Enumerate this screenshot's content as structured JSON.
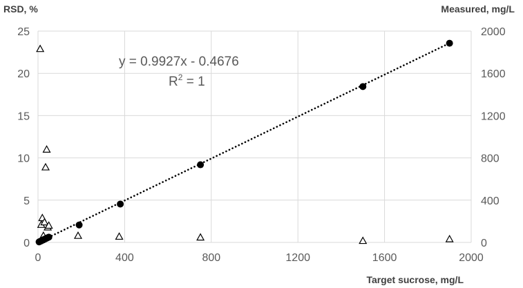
{
  "chart_data": {
    "type": "scatter",
    "x_label": "Target sucrose, mg/L",
    "y_left_label": "RSD, %",
    "y_right_label": "Measured, mg/L",
    "x_ticks": [
      "0",
      "400",
      "800",
      "1200",
      "1600",
      "2000"
    ],
    "y_left_ticks": [
      "0",
      "5",
      "10",
      "15",
      "20",
      "25"
    ],
    "y_right_ticks": [
      "0",
      "400",
      "800",
      "1200",
      "1600",
      "2000"
    ],
    "xlim": [
      0,
      2000
    ],
    "ylim_left": [
      0,
      25
    ],
    "ylim_right": [
      0,
      2000
    ],
    "grid": true,
    "series": [
      {
        "axis": "left",
        "marker": "triangle-open",
        "x": [
          10,
          15,
          20,
          25,
          30,
          35,
          40,
          45,
          50,
          185,
          375,
          750,
          1500,
          1900
        ],
        "y": [
          22.9,
          2.1,
          2.9,
          0.8,
          2.4,
          8.9,
          11.0,
          1.8,
          2.0,
          0.8,
          0.7,
          0.6,
          0.2,
          0.4
        ]
      },
      {
        "axis": "right",
        "marker": "circle-filled",
        "x": [
          5,
          10,
          15,
          20,
          25,
          30,
          35,
          40,
          45,
          50,
          190,
          380,
          750,
          1500,
          1900
        ],
        "y": [
          5,
          10,
          15,
          20,
          25,
          30,
          35,
          40,
          45,
          50,
          165,
          363,
          735,
          1475,
          1885
        ]
      }
    ],
    "trendline": {
      "axis": "right",
      "style": "dotted",
      "slope": 0.9927,
      "intercept": -0.4676,
      "x_range": [
        5,
        1900
      ]
    },
    "annotations": {
      "equation": "y = 0.9927x - 0.4676",
      "r2_base": "R",
      "r2_exp": "2",
      "r2_rest": " = 1"
    }
  }
}
